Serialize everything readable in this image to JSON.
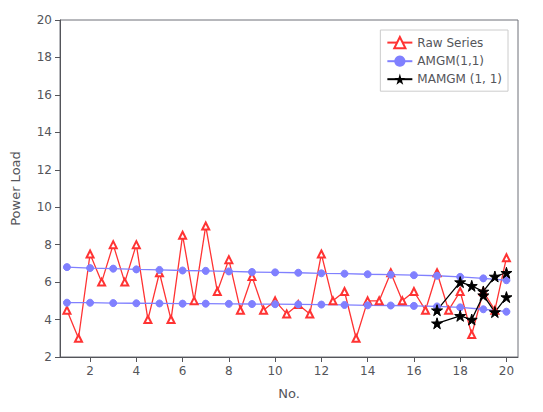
{
  "chart_data": {
    "type": "line",
    "xlabel": "No.",
    "ylabel": "Power Load",
    "xlim": [
      0.7,
      20.5
    ],
    "xticks": [
      2,
      4,
      6,
      8,
      10,
      12,
      14,
      16,
      18,
      20
    ],
    "ylim": [
      2,
      20
    ],
    "yticks": [
      2,
      4,
      6,
      8,
      10,
      12,
      14,
      16,
      18,
      20
    ],
    "grid": false,
    "legend": "upper right",
    "series": [
      {
        "name": "Raw Series",
        "color": "#FF3333",
        "marker": "triangle-open",
        "x": [
          1,
          1.5,
          2,
          2.5,
          3,
          3.5,
          4,
          4.5,
          5,
          5.5,
          6,
          6.5,
          7,
          7.5,
          8,
          8.5,
          9,
          9.5,
          10,
          10.5,
          11,
          11.5,
          12,
          12.5,
          13,
          13.5,
          14,
          14.5,
          15,
          15.5,
          16,
          16.5,
          17,
          17.5,
          18,
          18.5,
          19,
          19.5,
          20
        ],
        "values": [
          4.5,
          3.0,
          7.5,
          6.0,
          8.0,
          6.0,
          8.0,
          4.0,
          6.5,
          4.0,
          8.5,
          5.0,
          9.0,
          5.5,
          7.2,
          4.5,
          6.3,
          4.5,
          5.0,
          4.3,
          4.8,
          4.3,
          7.5,
          5.0,
          5.5,
          3.0,
          5.0,
          5.0,
          6.5,
          5.0,
          5.5,
          4.5,
          6.5,
          4.5,
          5.5,
          3.2,
          5.5,
          4.5,
          7.3
        ]
      },
      {
        "name": "AMGM(1,1)",
        "color": "#8080FF",
        "marker": "circle",
        "x": [
          1,
          2,
          3,
          4,
          5,
          6,
          7,
          8,
          9,
          10,
          11,
          12,
          13,
          14,
          15,
          16,
          17,
          18,
          19,
          20
        ],
        "values": [
          6.8,
          6.75,
          6.72,
          6.68,
          6.65,
          6.62,
          6.6,
          6.57,
          6.54,
          6.52,
          6.5,
          6.47,
          6.45,
          6.42,
          6.4,
          6.37,
          6.34,
          6.28,
          6.2,
          6.1
        ]
      },
      {
        "name": "AMGM(1,1)",
        "color": "#8080FF",
        "marker": "circle",
        "x": [
          1,
          2,
          3,
          4,
          5,
          6,
          7,
          8,
          9,
          10,
          11,
          12,
          13,
          14,
          15,
          16,
          17,
          18,
          19,
          20
        ],
        "values": [
          4.9,
          4.9,
          4.88,
          4.87,
          4.86,
          4.85,
          4.85,
          4.84,
          4.83,
          4.82,
          4.81,
          4.8,
          4.78,
          4.76,
          4.75,
          4.73,
          4.7,
          4.65,
          4.55,
          4.42
        ]
      },
      {
        "name": "MAMGM (1, 1)",
        "color": "#000000",
        "marker": "star",
        "x": [
          17,
          18,
          18.5,
          19,
          19.5,
          20
        ],
        "values": [
          4.5,
          6.0,
          5.8,
          5.5,
          6.3,
          6.5
        ]
      },
      {
        "name": "MAMGM (1, 1)",
        "color": "#000000",
        "marker": "star",
        "x": [
          17,
          18,
          18.5,
          19,
          19.5,
          20
        ],
        "values": [
          3.8,
          4.2,
          4.0,
          5.3,
          4.4,
          5.2
        ]
      }
    ]
  }
}
